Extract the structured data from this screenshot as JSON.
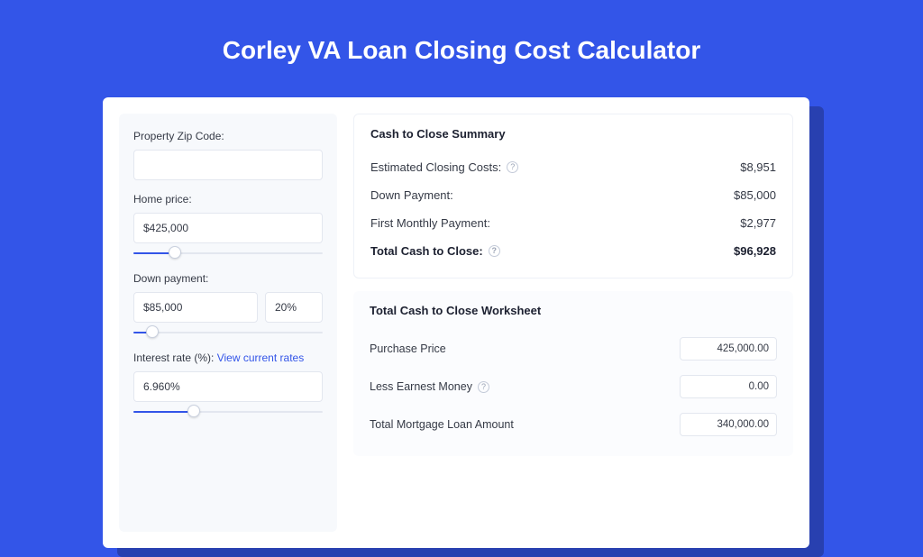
{
  "page": {
    "title": "Corley VA Loan Closing Cost Calculator",
    "bg_color": "#3355e8",
    "shadow_color": "#2840b0"
  },
  "left": {
    "zip": {
      "label": "Property Zip Code:",
      "value": ""
    },
    "home_price": {
      "label": "Home price:",
      "value": "$425,000",
      "slider_pct": 22
    },
    "down_payment": {
      "label": "Down payment:",
      "value": "$85,000",
      "pct": "20%",
      "slider_pct": 10
    },
    "interest": {
      "label": "Interest rate (%):",
      "link": "View current rates",
      "value": "6.960%",
      "slider_pct": 32
    }
  },
  "summary": {
    "title": "Cash to Close Summary",
    "rows": [
      {
        "label": "Estimated Closing Costs:",
        "help": true,
        "value": "$8,951"
      },
      {
        "label": "Down Payment:",
        "help": false,
        "value": "$85,000"
      },
      {
        "label": "First Monthly Payment:",
        "help": false,
        "value": "$2,977"
      }
    ],
    "total": {
      "label": "Total Cash to Close:",
      "help": true,
      "value": "$96,928"
    }
  },
  "worksheet": {
    "title": "Total Cash to Close Worksheet",
    "rows": [
      {
        "label": "Purchase Price",
        "help": false,
        "value": "425,000.00"
      },
      {
        "label": "Less Earnest Money",
        "help": true,
        "value": "0.00"
      },
      {
        "label": "Total Mortgage Loan Amount",
        "help": false,
        "value": "340,000.00"
      }
    ]
  }
}
